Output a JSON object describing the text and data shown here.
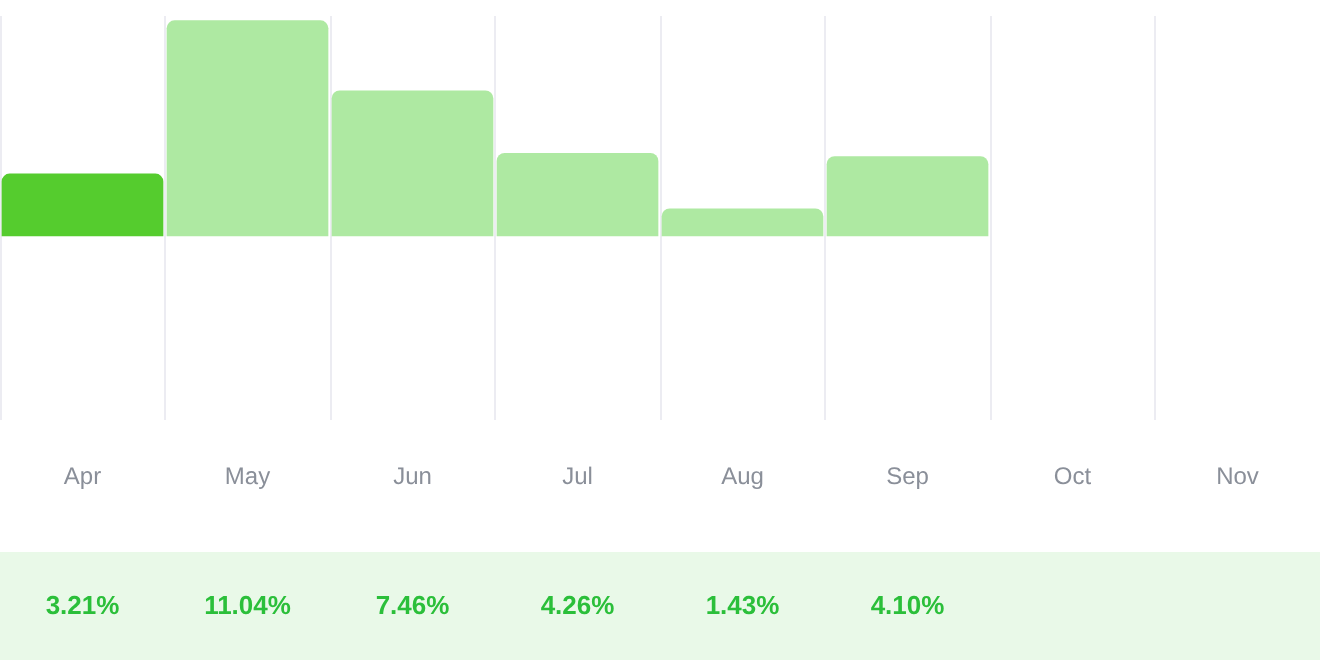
{
  "chart_data": {
    "type": "bar",
    "categories": [
      "Apr",
      "May",
      "Jun",
      "Jul",
      "Aug",
      "Sep",
      "Oct",
      "Nov"
    ],
    "values": [
      3.21,
      11.04,
      7.46,
      4.26,
      1.43,
      4.1,
      null,
      null
    ],
    "colors": [
      "#55cc2e",
      "#aee9a2",
      "#aee9a2",
      "#aee9a2",
      "#aee9a2",
      "#aee9a2",
      "#aee9a2",
      "#aee9a2"
    ],
    "value_labels": [
      "3.21%",
      "11.04%",
      "7.46%",
      "4.26%",
      "1.43%",
      "4.10%",
      null,
      null
    ],
    "grid": "x"
  }
}
